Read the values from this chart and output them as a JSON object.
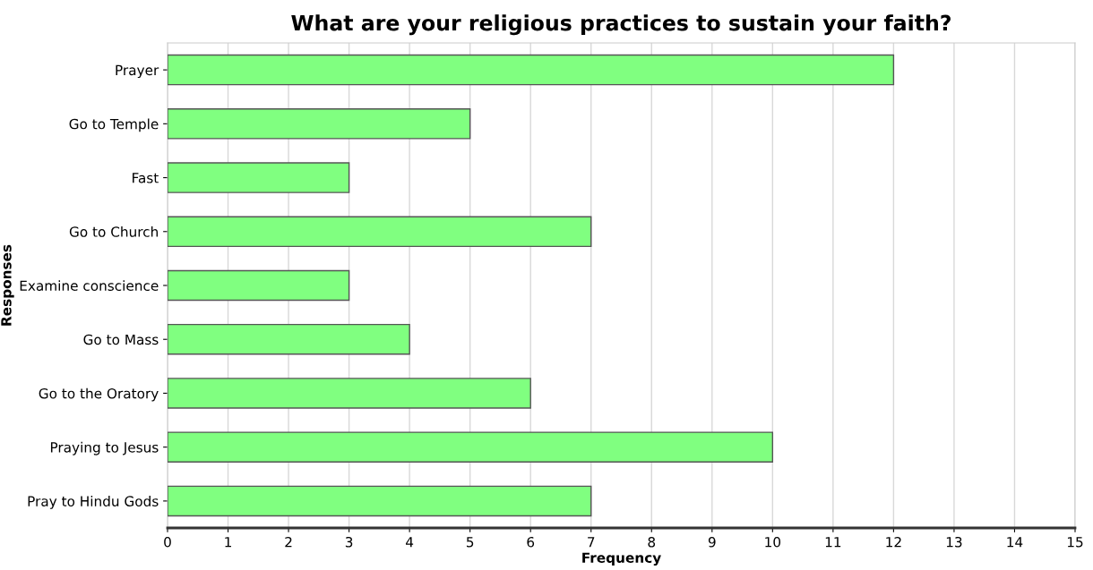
{
  "chart_data": {
    "type": "bar",
    "orientation": "horizontal",
    "title": "What are your religious practices to sustain your faith?",
    "xlabel": "Frequency",
    "ylabel": "Responses",
    "categories": [
      "Prayer",
      "Go to Temple",
      "Fast",
      "Go to Church",
      "Examine conscience",
      "Go to Mass",
      "Go to the Oratory",
      "Praying to Jesus",
      "Pray to Hindu Gods"
    ],
    "values": [
      12,
      5,
      3,
      7,
      3,
      4,
      6,
      10,
      7
    ],
    "color": "#80ff80",
    "xlim": [
      0,
      15
    ],
    "xticks": [
      0,
      1,
      2,
      3,
      4,
      5,
      6,
      7,
      8,
      9,
      10,
      11,
      12,
      13,
      14,
      15
    ],
    "grid": "x",
    "legend": false
  }
}
